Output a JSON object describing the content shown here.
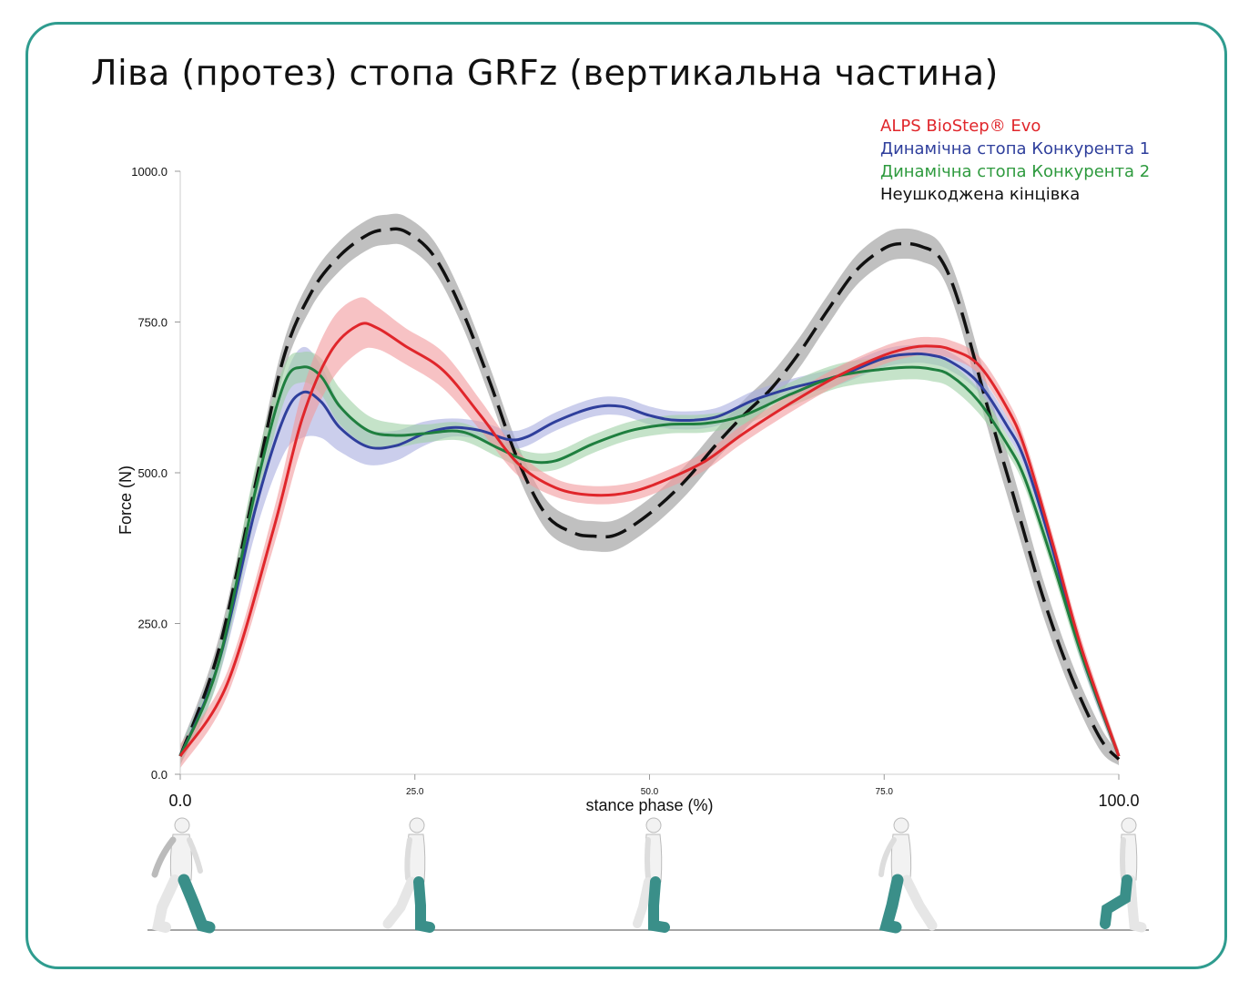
{
  "title": "Ліва (протез) стопа GRFz (вертикальна частина)",
  "colors": {
    "frame": "#2f9c8f",
    "figure_leg": "#3a8f89"
  },
  "chart_data": {
    "type": "line",
    "title": "Ліва (протез) стопа GRFz (вертикальна частина)",
    "xlabel": "stance phase (%)",
    "ylabel": "Force (N)",
    "xlim": [
      0,
      100
    ],
    "ylim": [
      0,
      1000
    ],
    "x_ticks": [
      "0.0",
      "25.0",
      "50.0",
      "75.0",
      "100.0"
    ],
    "x_tick_values": [
      0,
      25,
      50,
      75,
      100
    ],
    "y_ticks": [
      "0.0",
      "250.0",
      "500.0",
      "750.0",
      "1000.0"
    ],
    "y_tick_values": [
      0,
      250,
      500,
      750,
      1000
    ],
    "legend_position": "top-right",
    "series": [
      {
        "name": "ALPS BioStep® Evo",
        "color": "#e0262b",
        "band_color": "#f29a9c",
        "style": "solid",
        "x": [
          0,
          5,
          10,
          13,
          16,
          19,
          21,
          24,
          28,
          32,
          36,
          40,
          44,
          48,
          52,
          56,
          60,
          65,
          70,
          75,
          78,
          80,
          82,
          85,
          88,
          90,
          93,
          96,
          100
        ],
        "y": [
          30,
          150,
          410,
          590,
          700,
          745,
          740,
          710,
          670,
          595,
          515,
          475,
          463,
          468,
          490,
          520,
          565,
          615,
          660,
          695,
          708,
          710,
          705,
          680,
          610,
          540,
          380,
          210,
          30
        ],
        "band": [
          20,
          20,
          30,
          45,
          50,
          45,
          35,
          30,
          30,
          25,
          20,
          15,
          15,
          15,
          15,
          15,
          15,
          15,
          15,
          15,
          15,
          15,
          15,
          15,
          15,
          15,
          15,
          15,
          10
        ]
      },
      {
        "name": "Динамічна стопа Конкурента 1",
        "color": "#2f3f9c",
        "band_color": "#a8aee0",
        "style": "solid",
        "x": [
          0,
          4,
          8,
          11,
          13,
          15,
          17,
          20,
          23,
          26,
          29,
          32,
          35,
          37,
          40,
          44,
          47,
          50,
          53,
          57,
          61,
          65,
          70,
          75,
          78,
          80,
          82,
          85,
          88,
          90,
          93,
          96,
          100
        ],
        "y": [
          30,
          180,
          440,
          590,
          633,
          618,
          575,
          543,
          545,
          565,
          575,
          570,
          555,
          560,
          585,
          608,
          610,
          595,
          587,
          592,
          620,
          640,
          660,
          690,
          697,
          695,
          685,
          650,
          580,
          520,
          370,
          200,
          30
        ],
        "band": [
          15,
          25,
          40,
          60,
          75,
          60,
          40,
          30,
          25,
          20,
          15,
          15,
          15,
          15,
          15,
          15,
          15,
          15,
          15,
          15,
          15,
          15,
          15,
          15,
          15,
          15,
          15,
          15,
          15,
          15,
          15,
          15,
          10
        ]
      },
      {
        "name": "Динамічна стопа Конкурента 2",
        "color": "#1f7f3f",
        "band_color": "#9fd0a5",
        "style": "solid",
        "x": [
          0,
          4,
          8,
          11,
          13,
          15,
          17,
          20,
          23,
          26,
          30,
          34,
          37,
          40,
          44,
          48,
          52,
          56,
          60,
          65,
          70,
          75,
          78,
          80,
          82,
          85,
          88,
          90,
          93,
          96,
          100
        ],
        "y": [
          30,
          180,
          470,
          645,
          675,
          660,
          610,
          570,
          562,
          565,
          568,
          540,
          520,
          520,
          548,
          570,
          580,
          582,
          595,
          630,
          660,
          672,
          675,
          672,
          662,
          620,
          550,
          490,
          350,
          200,
          30
        ],
        "band": [
          15,
          25,
          40,
          30,
          25,
          30,
          30,
          25,
          20,
          15,
          15,
          15,
          15,
          15,
          15,
          15,
          15,
          15,
          15,
          20,
          20,
          20,
          20,
          20,
          20,
          20,
          15,
          15,
          15,
          15,
          10
        ]
      },
      {
        "name": "Неушкоджена кінцівка",
        "color": "#111111",
        "band_color": "#bdbdbd",
        "style": "dashed",
        "x": [
          0,
          4,
          8,
          11,
          14,
          17,
          20,
          22,
          24,
          27,
          30,
          33,
          36,
          39,
          42,
          44,
          46,
          48,
          51,
          54,
          57,
          60,
          63,
          66,
          69,
          72,
          75,
          77,
          79,
          81,
          83,
          86,
          89,
          92,
          95,
          98,
          100
        ],
        "y": [
          30,
          200,
          480,
          690,
          800,
          860,
          895,
          903,
          900,
          860,
          770,
          650,
          520,
          430,
          400,
          395,
          395,
          410,
          445,
          490,
          545,
          595,
          640,
          700,
          770,
          835,
          872,
          880,
          875,
          855,
          780,
          610,
          450,
          290,
          160,
          60,
          25
        ],
        "band": [
          15,
          20,
          25,
          25,
          25,
          25,
          25,
          25,
          25,
          25,
          25,
          25,
          25,
          25,
          25,
          25,
          25,
          25,
          25,
          25,
          25,
          25,
          25,
          25,
          25,
          25,
          25,
          25,
          25,
          25,
          30,
          35,
          35,
          30,
          25,
          20,
          10
        ]
      }
    ]
  }
}
